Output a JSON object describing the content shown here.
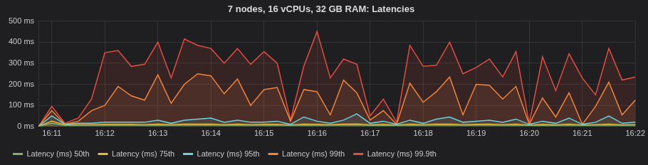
{
  "chart_data": {
    "type": "area",
    "title": "7 nodes, 16 vCPUs, 32 GB RAM: Latencies",
    "categories": [
      null,
      "16:11",
      null,
      null,
      null,
      "16:12",
      null,
      null,
      null,
      "16:13",
      null,
      null,
      null,
      "16:14",
      null,
      null,
      null,
      "16:15",
      null,
      null,
      null,
      "16:16",
      null,
      null,
      null,
      "16:17",
      null,
      null,
      null,
      "16:18",
      null,
      null,
      null,
      "16:19",
      null,
      null,
      null,
      "16:20",
      null,
      null,
      null,
      "16:21",
      null,
      null,
      null,
      "16:22"
    ],
    "series": [
      {
        "name": "Latency (ms) 50th",
        "color": "#7eb26d",
        "values": [
          0,
          15,
          5,
          6,
          6,
          7,
          6,
          7,
          6,
          7,
          6,
          7,
          7,
          7,
          6,
          7,
          6,
          6,
          7,
          5,
          7,
          6,
          6,
          7,
          8,
          5,
          6,
          5,
          7,
          6,
          7,
          7,
          6,
          7,
          7,
          6,
          7,
          5,
          6,
          5,
          7,
          5,
          6,
          7,
          5,
          6
        ]
      },
      {
        "name": "Latency (ms) 75th",
        "color": "#eab839",
        "values": [
          0,
          25,
          8,
          9,
          9,
          10,
          10,
          10,
          9,
          11,
          9,
          11,
          11,
          11,
          9,
          11,
          9,
          10,
          10,
          7,
          11,
          10,
          9,
          11,
          12,
          8,
          10,
          7,
          11,
          9,
          11,
          11,
          9,
          10,
          11,
          9,
          11,
          7,
          10,
          8,
          11,
          7,
          9,
          11,
          8,
          9
        ]
      },
      {
        "name": "Latency (ms) 95th",
        "color": "#6ed0e0",
        "values": [
          0,
          50,
          10,
          15,
          15,
          20,
          20,
          20,
          20,
          30,
          15,
          30,
          35,
          40,
          20,
          30,
          20,
          20,
          25,
          10,
          45,
          25,
          15,
          30,
          60,
          15,
          25,
          10,
          30,
          15,
          35,
          45,
          20,
          25,
          30,
          20,
          35,
          10,
          25,
          15,
          40,
          10,
          20,
          50,
          15,
          20
        ]
      },
      {
        "name": "Latency (ms) 99th",
        "color": "#ef843c",
        "values": [
          0,
          75,
          10,
          25,
          75,
          100,
          190,
          145,
          125,
          245,
          110,
          200,
          250,
          240,
          155,
          225,
          100,
          175,
          185,
          25,
          175,
          165,
          55,
          220,
          160,
          30,
          75,
          10,
          205,
          115,
          165,
          235,
          55,
          200,
          195,
          130,
          190,
          10,
          135,
          45,
          160,
          10,
          95,
          210,
          55,
          125
        ]
      },
      {
        "name": "Latency (ms) 99.9th",
        "color": "#e24d42",
        "values": [
          0,
          95,
          15,
          40,
          130,
          350,
          360,
          285,
          295,
          400,
          230,
          415,
          385,
          370,
          300,
          370,
          295,
          355,
          300,
          30,
          285,
          450,
          230,
          320,
          295,
          50,
          130,
          20,
          385,
          285,
          290,
          400,
          250,
          280,
          320,
          235,
          355,
          15,
          330,
          170,
          345,
          230,
          150,
          370,
          220,
          235
        ]
      }
    ],
    "ylim": [
      0,
      500
    ],
    "yticks": [
      {
        "value": 0,
        "label": "0 ms"
      },
      {
        "value": 100,
        "label": "100 ms"
      },
      {
        "value": 200,
        "label": "200 ms"
      },
      {
        "value": 300,
        "label": "300 ms"
      },
      {
        "value": 400,
        "label": "400 ms"
      },
      {
        "value": 500,
        "label": "500 ms"
      }
    ],
    "grid": true,
    "legend": "bottom"
  }
}
